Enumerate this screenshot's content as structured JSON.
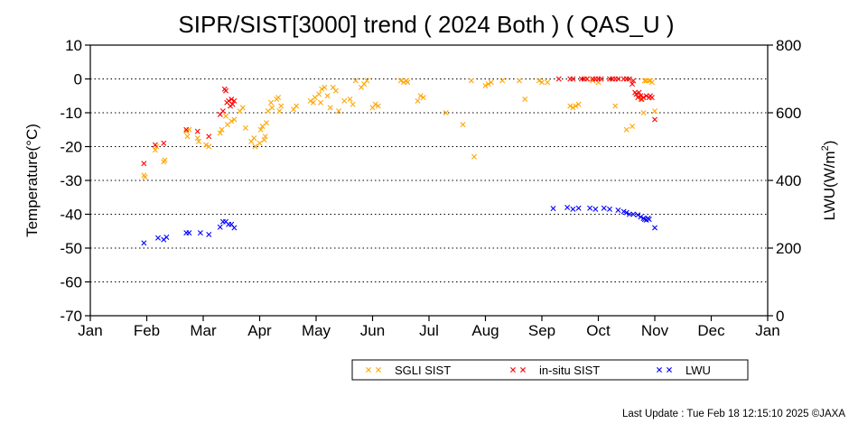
{
  "chart_data": {
    "type": "scatter",
    "title": "SIPR/SIST[3000] trend ( 2024 Both ) ( QAS_U )",
    "ylabel": "Temperature(°C)",
    "y2label_main": "LWU(W/m",
    "y2label_sup": "2",
    "y2label_tail": ")",
    "ylim": [
      -70,
      10
    ],
    "y2lim": [
      0,
      800
    ],
    "xlim": [
      0,
      12
    ],
    "x_tick_labels": [
      "Jan",
      "Feb",
      "Mar",
      "Apr",
      "May",
      "Jun",
      "Jul",
      "Aug",
      "Sep",
      "Oct",
      "Nov",
      "Dec",
      "Jan"
    ],
    "y_ticks": [
      10,
      0,
      -10,
      -20,
      -30,
      -40,
      -50,
      -60,
      -70
    ],
    "y2_ticks": [
      800,
      600,
      400,
      200,
      0
    ],
    "grid": "dotted horizontal",
    "legend_placement": "bottom-right",
    "colors": {
      "sgli": "#ffa500",
      "insitu": "#ff0000",
      "lwu": "#0000ff"
    },
    "series": [
      {
        "name": "SGLI SIST",
        "axis": "left",
        "x": [
          0.95,
          0.97,
          1.15,
          1.17,
          1.3,
          1.32,
          1.7,
          1.72,
          1.75,
          1.9,
          1.92,
          2.05,
          2.1,
          2.3,
          2.33,
          2.4,
          2.43,
          2.5,
          2.55,
          2.65,
          2.7,
          2.75,
          2.85,
          2.9,
          2.92,
          3.0,
          3.02,
          3.05,
          3.08,
          3.1,
          3.12,
          3.15,
          3.2,
          3.22,
          3.3,
          3.33,
          3.35,
          3.38,
          3.6,
          3.65,
          3.9,
          3.95,
          3.98,
          4.05,
          4.08,
          4.1,
          4.15,
          4.2,
          4.25,
          4.3,
          4.35,
          4.4,
          4.5,
          4.6,
          4.65,
          4.7,
          4.8,
          4.85,
          4.9,
          5.0,
          5.05,
          5.1,
          5.5,
          5.55,
          5.6,
          5.62,
          5.8,
          5.85,
          5.9,
          6.3,
          6.6,
          6.75,
          6.8,
          7.0,
          7.05,
          7.1,
          7.3,
          7.6,
          7.7,
          7.95,
          8.0,
          8.1,
          8.5,
          8.55,
          8.6,
          8.65,
          8.8,
          8.9,
          9.0,
          9.3,
          9.5,
          9.6,
          9.75,
          9.8,
          9.82,
          9.85,
          9.9,
          9.92,
          9.95,
          10.0
        ],
        "y": [
          -28.5,
          -29,
          -21,
          -20,
          -24.5,
          -24,
          -15.5,
          -17,
          -15,
          -17.5,
          -18.5,
          -19.5,
          -20,
          -16,
          -15,
          -11,
          -13.5,
          -12.5,
          -12,
          -9.5,
          -8.5,
          -14.5,
          -18.5,
          -17.5,
          -20,
          -19,
          -15,
          -14,
          -18,
          -17,
          -13,
          -9.5,
          -7,
          -8.5,
          -6,
          -5.5,
          -9.5,
          -8,
          -9,
          -8,
          -6.5,
          -7,
          -5.5,
          -4.5,
          -7,
          -3,
          -2.5,
          -5,
          -8.5,
          -2.5,
          -3.5,
          -9.5,
          -6.5,
          -6,
          -7.5,
          -0.5,
          -2.5,
          -1.5,
          -0.5,
          -8.5,
          -7.5,
          -8,
          -0.5,
          -1,
          -0.5,
          -1,
          -6.5,
          -5,
          -5.5,
          -10,
          -13.5,
          -0.5,
          -23,
          -2,
          -1.5,
          -1,
          -0.5,
          -0.5,
          -6,
          -0.5,
          -1,
          -1,
          -8,
          -8.5,
          -8,
          -7.5,
          0,
          -0.5,
          -1,
          -8,
          -15,
          -14,
          -6,
          -10,
          -0.5,
          -0.5,
          -0.5,
          -0.5,
          -1,
          -9.5
        ]
      },
      {
        "name": "in-situ SIST",
        "axis": "left",
        "x": [
          0.95,
          1.15,
          1.3,
          1.7,
          1.9,
          2.1,
          2.3,
          2.35,
          2.38,
          2.4,
          2.42,
          2.45,
          2.48,
          2.5,
          2.52,
          2.55,
          8.3,
          8.5,
          8.55,
          8.7,
          8.75,
          8.8,
          8.9,
          8.95,
          9.0,
          9.05,
          9.2,
          9.25,
          9.3,
          9.35,
          9.45,
          9.5,
          9.55,
          9.6,
          9.62,
          9.65,
          9.67,
          9.7,
          9.72,
          9.75,
          9.77,
          9.8,
          9.85,
          9.9,
          9.92,
          9.95,
          10.0
        ],
        "y": [
          -25,
          -19.5,
          -19,
          -15,
          -15.5,
          -17,
          -10.5,
          -9.5,
          -3,
          -3.5,
          -7,
          -6.5,
          -8,
          -6,
          -7.5,
          -6.5,
          0,
          0,
          0,
          0,
          0,
          0,
          0,
          0,
          0,
          0,
          0,
          0,
          0,
          0,
          0,
          0,
          0,
          -1.5,
          -0.5,
          -4,
          -4.5,
          -5.5,
          -4,
          -5,
          -6,
          -5.5,
          -5,
          -5.5,
          -5,
          -5.5,
          -12
        ]
      },
      {
        "name": "LWU",
        "axis": "right",
        "x": [
          0.95,
          1.2,
          1.3,
          1.35,
          1.7,
          1.75,
          1.95,
          2.1,
          2.3,
          2.35,
          2.4,
          2.45,
          2.5,
          2.55,
          8.2,
          8.45,
          8.55,
          8.65,
          8.85,
          8.95,
          9.1,
          9.2,
          9.35,
          9.45,
          9.5,
          9.55,
          9.62,
          9.7,
          9.75,
          9.8,
          9.82,
          9.85,
          9.88,
          9.9,
          10.0
        ],
        "y": [
          215,
          230,
          225,
          232,
          245,
          245,
          245,
          240,
          262,
          278,
          278,
          270,
          270,
          260,
          317,
          320,
          315,
          318,
          318,
          315,
          318,
          315,
          312,
          308,
          305,
          300,
          300,
          298,
          292,
          288,
          285,
          283,
          288,
          285,
          260
        ]
      }
    ]
  },
  "footer": {
    "last_update": "Last Update : Tue Feb 18 12:15:10 2025",
    "copyright": "©JAXA"
  }
}
